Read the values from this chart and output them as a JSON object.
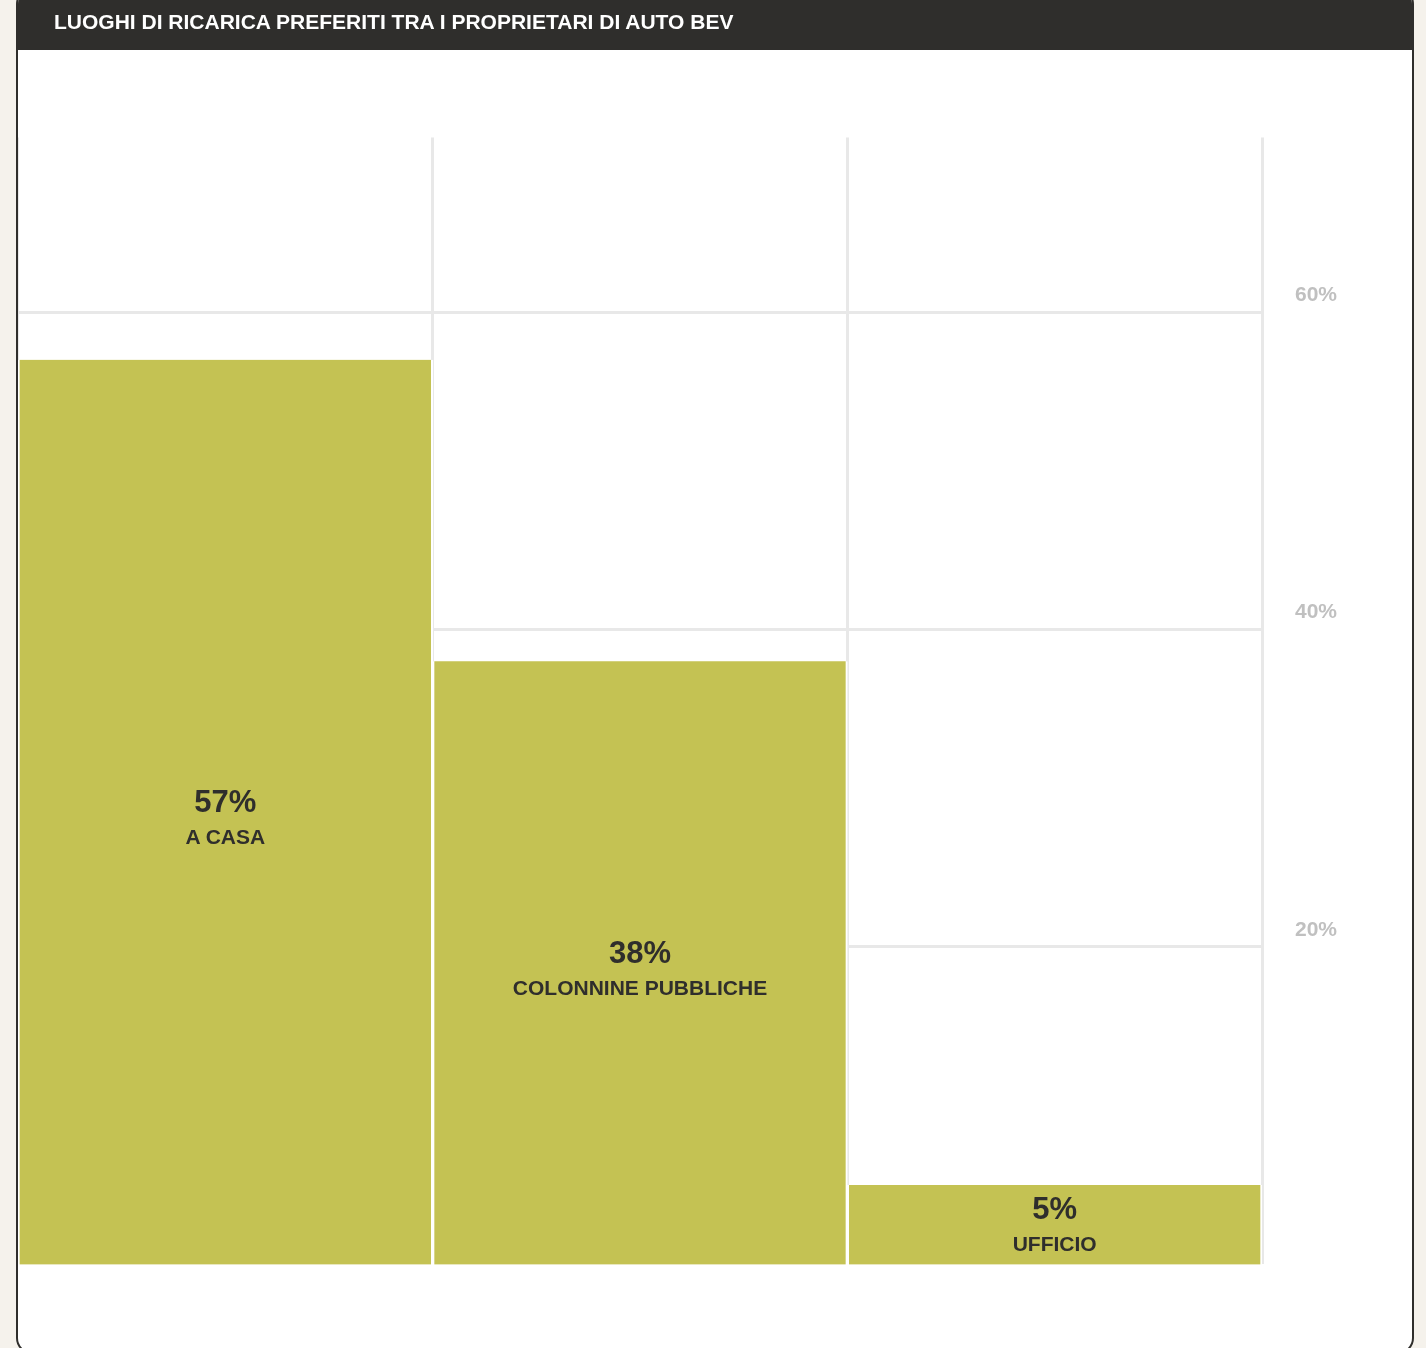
{
  "chart_data": {
    "type": "bar",
    "title": "LUOGHI DI RICARICA PREFERITI TRA I PROPRIETARI DI AUTO BEV",
    "categories": [
      "A CASA",
      "COLONNINE PUBBLICHE",
      "UFFICIO"
    ],
    "values": [
      57,
      38,
      5
    ],
    "color": "#c4c253",
    "value_labels": [
      "57%",
      "38%",
      "5%"
    ],
    "ylim": [
      0,
      71
    ],
    "yticks": [
      {
        "value": 20,
        "label": "20%"
      },
      {
        "value": 40,
        "label": "40%"
      },
      {
        "value": 60,
        "label": "60%"
      }
    ],
    "grid": true,
    "legend": false
  }
}
